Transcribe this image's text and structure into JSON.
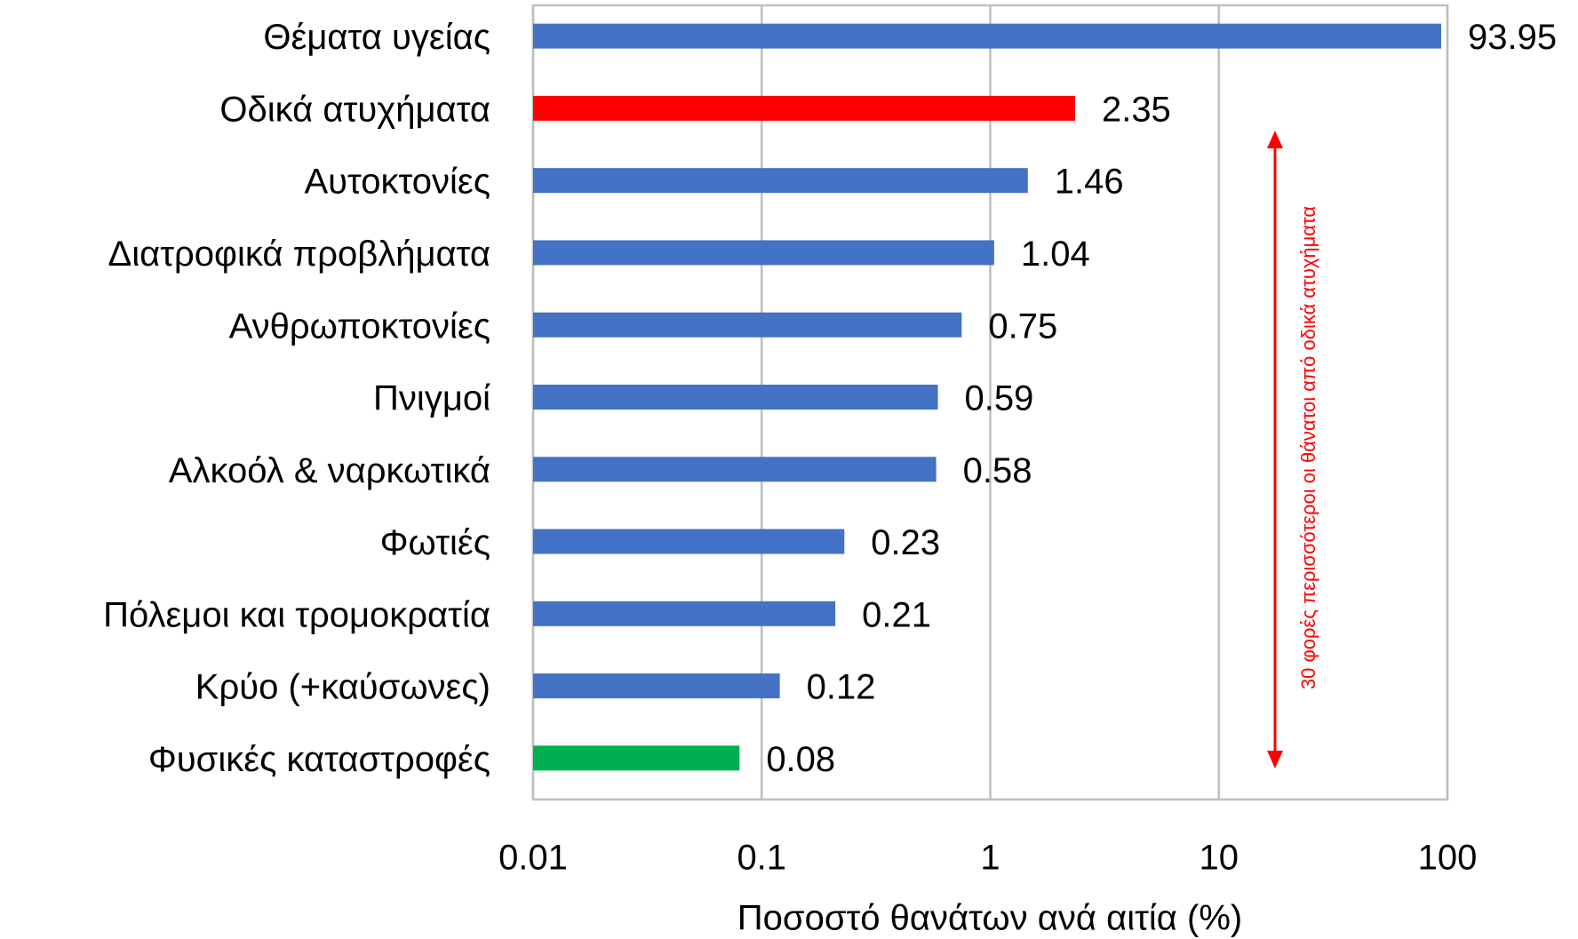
{
  "chart_data": {
    "type": "bar",
    "orientation": "horizontal",
    "xlabel": "Ποσοστό θανάτων ανά αιτία (%)",
    "annotation": "30 φορές περισσότεροι οι θάνατοι από οδικά ατυχήματα",
    "annotation_color": "#ff0000",
    "categories": [
      "Θέματα υγείας",
      "Οδικά ατυχήματα",
      "Αυτοκτονίες",
      "Διατροφικά προβλήματα",
      "Ανθρωποκτονίες",
      "Πνιγμοί",
      "Αλκοόλ & ναρκωτικά",
      "Φωτιές",
      "Πόλεμοι και τρομοκρατία",
      "Κρύο (+καύσωνες)",
      "Φυσικές καταστροφές"
    ],
    "values": [
      93.95,
      2.35,
      1.46,
      1.04,
      0.75,
      0.59,
      0.58,
      0.23,
      0.21,
      0.12,
      0.08
    ],
    "colors": [
      "#4472c4",
      "#ff0000",
      "#4472c4",
      "#4472c4",
      "#4472c4",
      "#4472c4",
      "#4472c4",
      "#4472c4",
      "#4472c4",
      "#4472c4",
      "#00b050"
    ],
    "xscale": "log",
    "xlim": [
      0.01,
      100
    ],
    "xticks": [
      0.01,
      0.1,
      1,
      10,
      100
    ],
    "grid": true
  }
}
